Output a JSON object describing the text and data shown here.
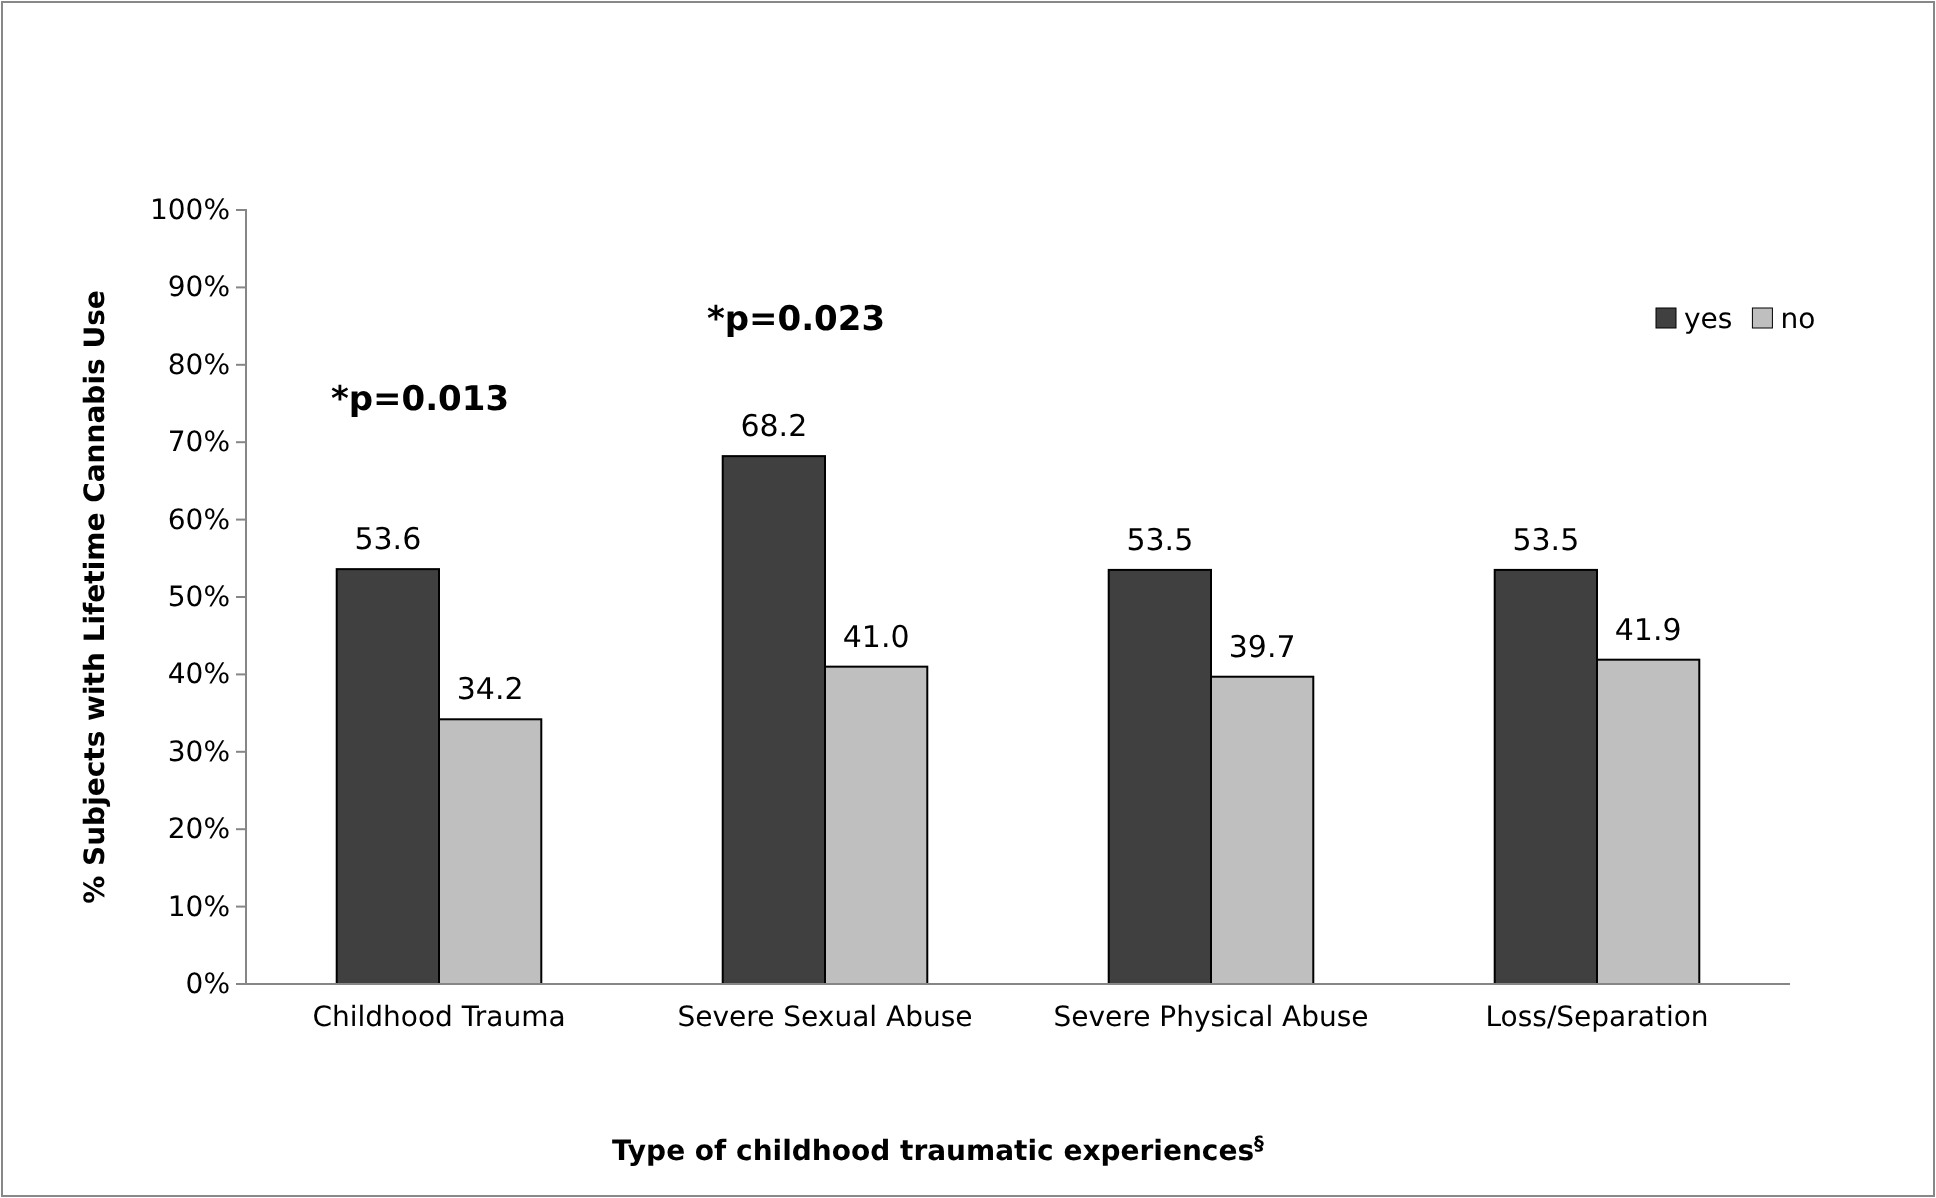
{
  "chart_data": {
    "type": "bar",
    "xlabel": "Type of childhood traumatic experiences$^{§}$",
    "ylabel": "% Subjects with Lifetime Cannabis Use",
    "categories": [
      "Childhood Trauma",
      "Severe Sexual Abuse",
      "Severe Physical Abuse",
      "Loss/Separation"
    ],
    "series": [
      {
        "name": "yes",
        "color": "#404040",
        "values": [
          53.6,
          68.2,
          53.5,
          53.5
        ],
        "value_labels": [
          "53.6",
          "68.2",
          "53.5",
          "53.5"
        ]
      },
      {
        "name": "no",
        "color": "#bfbfbf",
        "values": [
          34.2,
          41.0,
          39.7,
          41.9
        ],
        "value_labels": [
          "34.2",
          "41.0",
          "39.7",
          "41.9"
        ]
      }
    ],
    "ylim": [
      0,
      100
    ],
    "yticks": [
      {
        "value": 0,
        "label": "0%"
      },
      {
        "value": 10,
        "label": "10%"
      },
      {
        "value": 20,
        "label": "20%"
      },
      {
        "value": 30,
        "label": "30%"
      },
      {
        "value": 40,
        "label": "40%"
      },
      {
        "value": 50,
        "label": "50%"
      },
      {
        "value": 60,
        "label": "60%"
      },
      {
        "value": 70,
        "label": "70%"
      },
      {
        "value": 80,
        "label": "80%"
      },
      {
        "value": 90,
        "label": "90%"
      },
      {
        "value": 100,
        "label": "100%"
      }
    ],
    "grid": false,
    "legend": "top right",
    "annotations": [
      "*p=0.013",
      "*p=0.023"
    ]
  }
}
